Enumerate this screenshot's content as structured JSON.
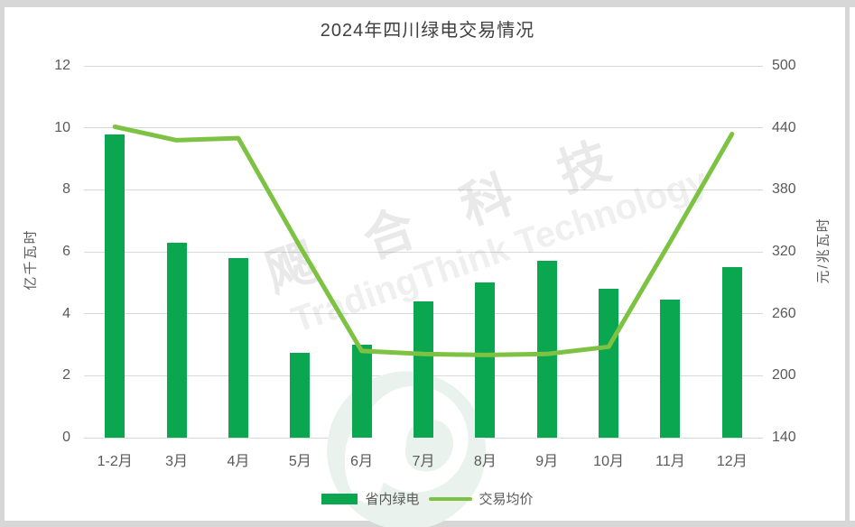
{
  "title": "2024年四川绿电交易情况",
  "watermark": {
    "cn_text": "飔合科技",
    "en_text": "TradingThink Technology",
    "logo": "swirl-bird-logo"
  },
  "legend": {
    "items": [
      {
        "label": "省内绿电",
        "swatch": "bar",
        "color": "#0aa650"
      },
      {
        "label": "交易均价",
        "swatch": "line",
        "color": "#7dc243"
      }
    ]
  },
  "colors": {
    "bar": "#0aa650",
    "line": "#7dc243",
    "grid": "#d9d9d9",
    "tick_text": "#595959",
    "title_text": "#404040",
    "frame": "#d7d7d7"
  },
  "chart_data": {
    "type": "bar",
    "subtype": "bar-and-line-dual-axis",
    "title": "2024年四川绿电交易情况",
    "categories": [
      "1-2月",
      "3月",
      "4月",
      "5月",
      "6月",
      "7月",
      "8月",
      "9月",
      "10月",
      "11月",
      "12月"
    ],
    "series": [
      {
        "name": "省内绿电",
        "type": "bar",
        "axis": "left",
        "color": "#0aa650",
        "values": [
          9.8,
          6.3,
          5.8,
          2.75,
          3.0,
          4.4,
          5.0,
          5.7,
          4.8,
          4.45,
          5.5
        ]
      },
      {
        "name": "交易均价",
        "type": "line",
        "axis": "right",
        "color": "#7dc243",
        "values": [
          441,
          428,
          430,
          325,
          224,
          221,
          220,
          221,
          228,
          330,
          434
        ]
      }
    ],
    "left_axis": {
      "label": "亿千瓦时",
      "min": 0,
      "max": 12,
      "ticks": [
        0,
        2,
        4,
        6,
        8,
        10,
        12
      ]
    },
    "right_axis": {
      "label": "元/兆瓦时",
      "min": 140,
      "max": 500,
      "ticks": [
        140,
        200,
        260,
        320,
        380,
        440,
        500
      ]
    },
    "grid": true,
    "legend_position": "bottom"
  }
}
